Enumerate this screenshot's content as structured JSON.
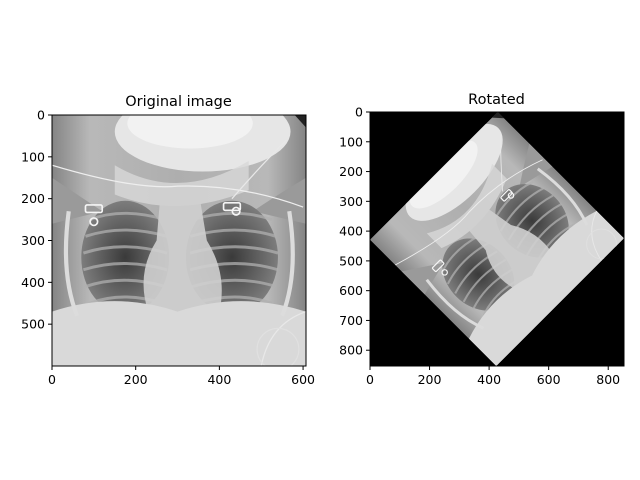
{
  "chart_data": [
    {
      "type": "image",
      "title": "Original image",
      "image_width": 607,
      "image_height": 600,
      "xticks": [
        0,
        200,
        400,
        600
      ],
      "yticks": [
        0,
        100,
        200,
        300,
        400,
        500
      ],
      "content": "chest x-ray, upright"
    },
    {
      "type": "image",
      "title": "Rotated",
      "image_width": 853,
      "image_height": 853,
      "rotation_deg": 45,
      "xticks": [
        0,
        200,
        400,
        600,
        800
      ],
      "yticks": [
        0,
        100,
        200,
        300,
        400,
        500,
        600,
        700,
        800
      ],
      "content": "same chest x-ray rotated 45 degrees on black background"
    }
  ]
}
